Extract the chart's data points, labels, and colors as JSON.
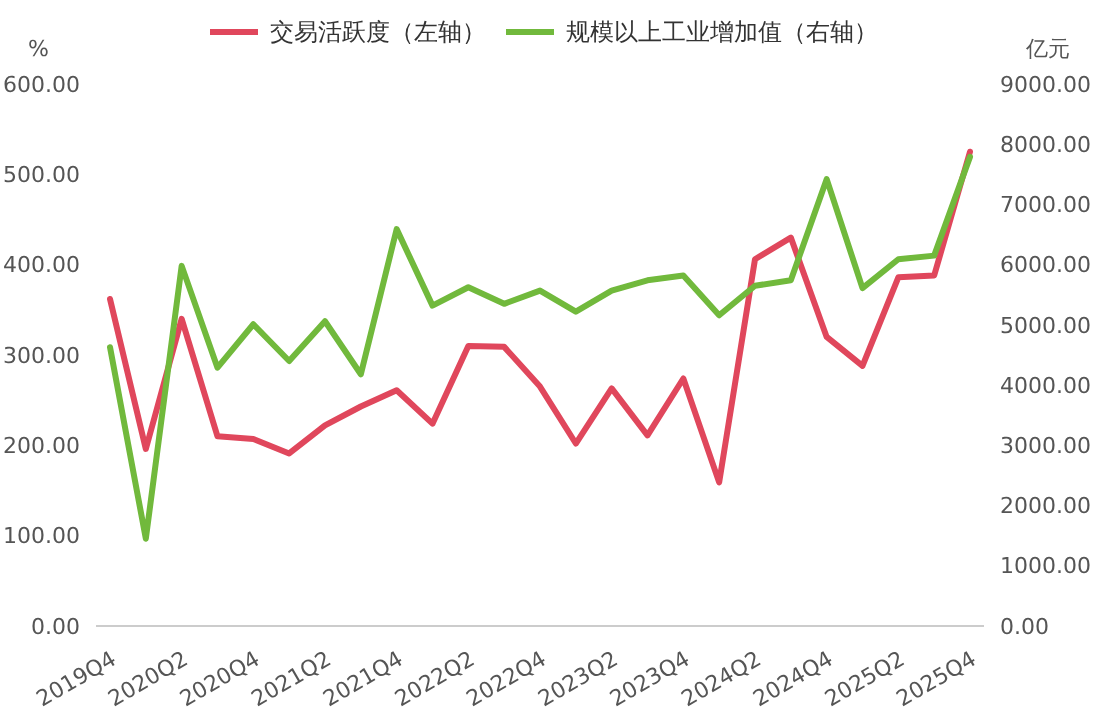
{
  "chart_data": {
    "type": "line",
    "ylabel": "%",
    "y2label": "亿元",
    "categories": [
      "2019Q4",
      null,
      "2020Q2",
      null,
      "2020Q4",
      null,
      "2021Q2",
      null,
      "2021Q4",
      null,
      "2022Q2",
      null,
      "2022Q4",
      null,
      "2023Q2",
      null,
      "2023Q4",
      null,
      "2024Q2",
      null,
      "2024Q4",
      null,
      "2025Q2",
      null,
      "2025Q4"
    ],
    "series": [
      {
        "name": "交易活跃度（左轴）",
        "color": "#e0475c",
        "values": [
          362,
          196,
          340,
          210,
          207,
          191,
          222,
          243,
          261,
          224,
          310,
          309,
          265,
          202,
          263,
          211,
          274,
          159,
          406,
          430,
          320,
          288,
          386,
          388,
          525
        ]
      },
      {
        "name": "规模以上工业增加值（右轴）",
        "color": "#71b93c",
        "axis": "y2",
        "values": [
          4630,
          1450,
          5980,
          4290,
          5010,
          4400,
          5060,
          4180,
          6590,
          5320,
          5625,
          5350,
          5570,
          5220,
          5570,
          5740,
          5820,
          5160,
          5650,
          5740,
          7420,
          5610,
          6090,
          6150,
          7790
        ]
      }
    ],
    "ylim": [
      0,
      600
    ],
    "yticks": [
      {
        "value": 0,
        "label": "0.00"
      },
      {
        "value": 100,
        "label": "100.00"
      },
      {
        "value": 200,
        "label": "200.00"
      },
      {
        "value": 300,
        "label": "300.00"
      },
      {
        "value": 400,
        "label": "400.00"
      },
      {
        "value": 500,
        "label": "500.00"
      },
      {
        "value": 600,
        "label": "600.00"
      }
    ],
    "y2lim": [
      0,
      9000
    ],
    "y2ticks": [
      {
        "value": 0,
        "label": "0.00"
      },
      {
        "value": 1000,
        "label": "1000.00"
      },
      {
        "value": 2000,
        "label": "2000.00"
      },
      {
        "value": 3000,
        "label": "3000.00"
      },
      {
        "value": 4000,
        "label": "4000.00"
      },
      {
        "value": 5000,
        "label": "5000.00"
      },
      {
        "value": 6000,
        "label": "6000.00"
      },
      {
        "value": 7000,
        "label": "7000.00"
      },
      {
        "value": 8000,
        "label": "8000.00"
      },
      {
        "value": 9000,
        "label": "9000.00"
      }
    ],
    "grid": false,
    "legend": "top",
    "line_style": "solid",
    "marker": "none"
  }
}
